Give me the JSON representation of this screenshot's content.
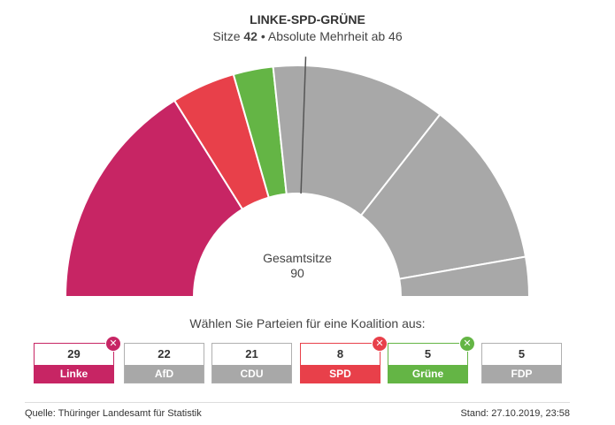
{
  "header": {
    "title": "LINKE-SPD-GRÜNE",
    "seats_label": "Sitze",
    "seats_value": "42",
    "majority_text": " • Absolute Mehrheit ab 46"
  },
  "center": {
    "label": "Gesamtsitze",
    "value": "90"
  },
  "prompt": "Wählen Sie Parteien für eine Koalition aus:",
  "footer": {
    "source": "Quelle: Thüringer Landesamt für Statistik",
    "stand": "Stand: 27.10.2019, 23:58"
  },
  "colors": {
    "inactive": "#a8a8a8",
    "background": "#ffffff"
  },
  "chart_data": {
    "type": "pie",
    "variant": "semicircle-parliament",
    "total_seats": 90,
    "majority": 46,
    "parties": [
      {
        "name": "Linke",
        "seats": 29,
        "color": "#c72564",
        "selected": true,
        "remove_icon": "close-icon"
      },
      {
        "name": "SPD",
        "seats": 8,
        "color": "#e8404a",
        "selected": true,
        "remove_icon": "close-icon"
      },
      {
        "name": "Grüne",
        "seats": 5,
        "color": "#64b545",
        "selected": true,
        "remove_icon": "close-icon"
      },
      {
        "name": "AfD",
        "seats": 22,
        "color": "#a8a8a8",
        "selected": false
      },
      {
        "name": "CDU",
        "seats": 21,
        "color": "#a8a8a8",
        "selected": false
      },
      {
        "name": "FDP",
        "seats": 5,
        "color": "#a8a8a8",
        "selected": false
      }
    ]
  },
  "buttons": [
    {
      "name": "Linke",
      "seats": "29",
      "color": "#c72564",
      "selected": true
    },
    {
      "name": "AfD",
      "seats": "22",
      "color": "#a8a8a8",
      "selected": false
    },
    {
      "name": "CDU",
      "seats": "21",
      "color": "#a8a8a8",
      "selected": false
    },
    {
      "name": "SPD",
      "seats": "8",
      "color": "#e8404a",
      "selected": true
    },
    {
      "name": "Grüne",
      "seats": "5",
      "color": "#64b545",
      "selected": true
    },
    {
      "name": "FDP",
      "seats": "5",
      "color": "#a8a8a8",
      "selected": false
    }
  ]
}
